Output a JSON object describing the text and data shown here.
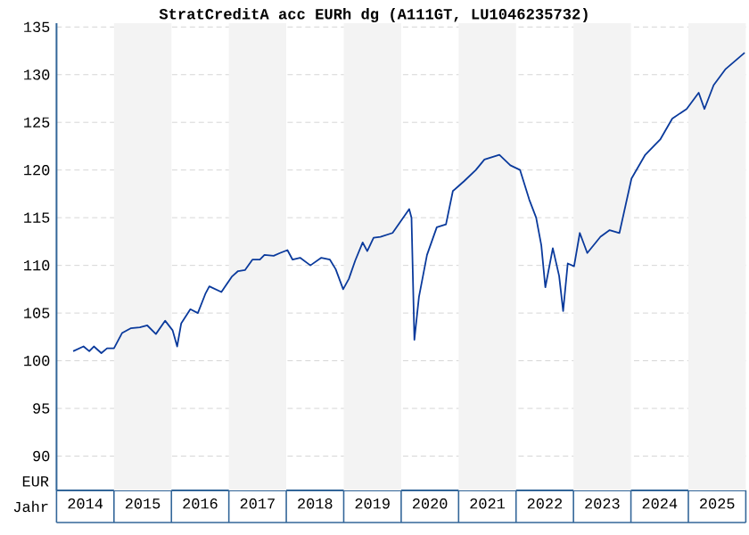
{
  "chart_data": {
    "type": "line",
    "title": "StratCreditA acc EURh dg (A111GT, LU1046235732)",
    "xlabel": "Jahr",
    "ylabel": "EUR",
    "x": [
      2014.29,
      2014.47,
      2014.57,
      2014.65,
      2014.78,
      2014.88,
      2015.0,
      2015.14,
      2015.29,
      2015.45,
      2015.58,
      2015.73,
      2015.89,
      2016.02,
      2016.1,
      2016.17,
      2016.33,
      2016.46,
      2016.59,
      2016.66,
      2016.87,
      2017.05,
      2017.16,
      2017.28,
      2017.41,
      2017.54,
      2017.62,
      2017.78,
      2017.89,
      2018.02,
      2018.11,
      2018.24,
      2018.42,
      2018.61,
      2018.76,
      2018.86,
      2018.99,
      2019.09,
      2019.2,
      2019.33,
      2019.41,
      2019.52,
      2019.64,
      2019.85,
      2020.14,
      2020.18,
      2020.23,
      2020.31,
      2020.45,
      2020.62,
      2020.78,
      2020.9,
      2021.09,
      2021.3,
      2021.45,
      2021.71,
      2021.9,
      2022.07,
      2022.23,
      2022.35,
      2022.44,
      2022.51,
      2022.64,
      2022.75,
      2022.82,
      2022.9,
      2023.01,
      2023.11,
      2023.24,
      2023.47,
      2023.63,
      2023.8,
      2024.01,
      2024.25,
      2024.51,
      2024.72,
      2024.97,
      2025.18,
      2025.28,
      2025.44,
      2025.65,
      2025.98
    ],
    "series": [
      {
        "color": "#0a3a9c",
        "values": [
          101.0,
          101.5,
          101.0,
          101.5,
          100.8,
          101.3,
          101.3,
          102.9,
          103.4,
          103.5,
          103.7,
          102.8,
          104.2,
          103.2,
          101.5,
          103.9,
          105.4,
          105.0,
          107.0,
          107.8,
          107.2,
          108.8,
          109.4,
          109.5,
          110.6,
          110.6,
          111.1,
          111.0,
          111.3,
          111.6,
          110.6,
          110.8,
          110.0,
          110.8,
          110.6,
          109.6,
          107.5,
          108.6,
          110.5,
          112.4,
          111.5,
          112.9,
          113.0,
          113.4,
          115.9,
          115.0,
          102.2,
          106.7,
          111.1,
          114.0,
          114.3,
          117.8,
          118.8,
          120.0,
          121.1,
          121.6,
          120.5,
          120.0,
          116.9,
          115.0,
          112.1,
          107.7,
          111.8,
          108.9,
          105.2,
          110.2,
          109.9,
          113.4,
          111.3,
          113.0,
          113.7,
          113.4,
          119.1,
          121.6,
          123.2,
          125.4,
          126.4,
          128.1,
          126.4,
          128.9,
          130.6,
          132.3
        ]
      }
    ],
    "xlim": [
      2014,
      2026
    ],
    "ylim": [
      86.4,
      135.4
    ],
    "xticks": [
      {
        "value": 2014.5,
        "label": "2014"
      },
      {
        "value": 2015.5,
        "label": "2015"
      },
      {
        "value": 2016.5,
        "label": "2016"
      },
      {
        "value": 2017.5,
        "label": "2017"
      },
      {
        "value": 2018.5,
        "label": "2018"
      },
      {
        "value": 2019.5,
        "label": "2019"
      },
      {
        "value": 2020.5,
        "label": "2020"
      },
      {
        "value": 2021.5,
        "label": "2021"
      },
      {
        "value": 2022.5,
        "label": "2022"
      },
      {
        "value": 2023.5,
        "label": "2023"
      },
      {
        "value": 2024.5,
        "label": "2024"
      },
      {
        "value": 2025.5,
        "label": "2025"
      }
    ],
    "yticks": [
      90,
      95,
      100,
      105,
      110,
      115,
      120,
      125,
      130,
      135
    ],
    "bands": [
      {
        "axis": "x",
        "from": 2015,
        "to": 2016,
        "color": "#f3f3f3"
      },
      {
        "axis": "x",
        "from": 2017,
        "to": 2018,
        "color": "#f3f3f3"
      },
      {
        "axis": "x",
        "from": 2019,
        "to": 2020,
        "color": "#f3f3f3"
      },
      {
        "axis": "x",
        "from": 2021,
        "to": 2022,
        "color": "#f3f3f3"
      },
      {
        "axis": "x",
        "from": 2023,
        "to": 2024,
        "color": "#f3f3f3"
      },
      {
        "axis": "x",
        "from": 2025,
        "to": 2026,
        "color": "#f3f3f3"
      }
    ],
    "grid": "y",
    "marker": "none",
    "line_style": "solid"
  }
}
